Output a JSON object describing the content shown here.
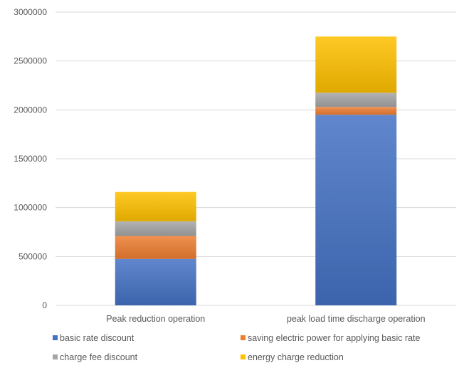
{
  "chart_data": {
    "type": "bar",
    "stacked": true,
    "title": "",
    "xlabel": "",
    "ylabel": "",
    "categories": [
      "Peak reduction operation",
      "peak load time discharge operation"
    ],
    "ylim": [
      0,
      3000000
    ],
    "yticks": [
      0,
      500000,
      1000000,
      1500000,
      2000000,
      2500000,
      3000000
    ],
    "ytick_labels": [
      "0",
      "500000",
      "1000000",
      "1500000",
      "2000000",
      "2500000",
      "3000000"
    ],
    "grid": true,
    "legend_position": "bottom",
    "series": [
      {
        "name": "basic rate discount",
        "color": "#4472C4",
        "values": [
          475000,
          1950000
        ]
      },
      {
        "name": "saving electric power for applying basic rate",
        "color": "#ED7D31",
        "values": [
          235000,
          80000
        ]
      },
      {
        "name": "charge fee discount",
        "color": "#A5A5A5",
        "values": [
          150000,
          145000
        ]
      },
      {
        "name": "energy charge reduction",
        "color": "#FFC000",
        "values": [
          300000,
          575000
        ]
      }
    ]
  }
}
